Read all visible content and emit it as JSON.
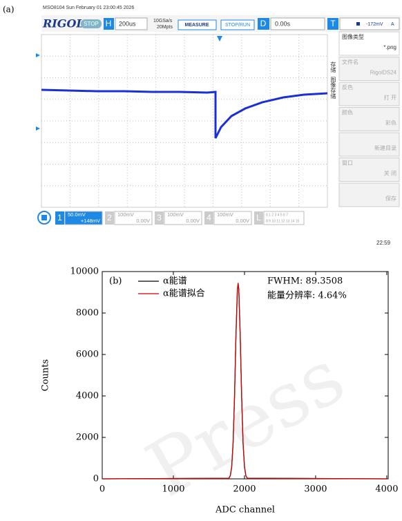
{
  "screenshot": {
    "label": "(a)",
    "header": "MSO8104 Sun February 01 23:00:45 2026",
    "toolbar": {
      "brand": "RIGOL",
      "state": "STOP",
      "h": "H",
      "timebase": "200us",
      "rate": "10GSa/s",
      "depth": "20Mpts",
      "measure": "MEASURE",
      "stoprun": "STOP/RUN",
      "d": "D",
      "delay": "0.00s",
      "t": "T",
      "trig_level": "-172mV",
      "trig_mode": "A"
    },
    "side": {
      "store": "存储",
      "image_store": "图像存储"
    },
    "menu": [
      {
        "label": "图像类型",
        "value": "*.png"
      },
      {
        "label": "文件名",
        "value": "RigolDS24"
      },
      {
        "label": "反色",
        "value": "打 开"
      },
      {
        "label": "颜色",
        "value": "彩色"
      },
      {
        "label": "",
        "value": "新建目录"
      },
      {
        "label": "窗口",
        "value": "关 闭"
      },
      {
        "label": "",
        "value": "保存"
      }
    ],
    "channels": [
      {
        "num": "1",
        "scale": "50.0mV",
        "offset": "+148mV"
      },
      {
        "num": "2",
        "scale": "100mV",
        "offset": "0.00V"
      },
      {
        "num": "3",
        "scale": "100mV",
        "offset": "0.00V"
      },
      {
        "num": "4",
        "scale": "100mV",
        "offset": "0.00V"
      }
    ],
    "logic": {
      "num": "L",
      "row1": "0 1 2 3 4 5 6 7",
      "row2": "8 9 10 11 12 13 14 15"
    },
    "time": "22:59"
  },
  "chart_data": {
    "type": "line",
    "label": "(b)",
    "x_label": "ADC channel",
    "y_label": "Counts",
    "annotations": [
      "FWHM: 89.3508",
      "能量分辨率: 4.64%"
    ],
    "watermark": "Press",
    "x": [
      0,
      1780,
      1800,
      1820,
      1840,
      1860,
      1880,
      1900,
      1910,
      1920,
      1940,
      1960,
      1980,
      2000,
      2020,
      2040,
      4000
    ],
    "series": [
      {
        "name": "α能谱",
        "color": "#000000",
        "values": [
          0,
          27,
          150,
          560,
          1750,
          3950,
          6950,
          9100,
          9400,
          9150,
          6900,
          3950,
          1720,
          580,
          140,
          30,
          0
        ]
      },
      {
        "name": "α能谱拟合",
        "color": "#cc0000",
        "values": [
          0,
          27,
          143,
          574,
          1731,
          3973,
          6917,
          9129,
          9450,
          9129,
          6917,
          3973,
          1731,
          574,
          143,
          27,
          0
        ]
      }
    ],
    "xlim": [
      0,
      4020
    ],
    "ylim": [
      0,
      10000
    ],
    "xticks": [
      0,
      1000,
      2000,
      3000,
      4000
    ],
    "yticks": [
      0,
      2000,
      4000,
      6000,
      8000,
      10000
    ]
  }
}
